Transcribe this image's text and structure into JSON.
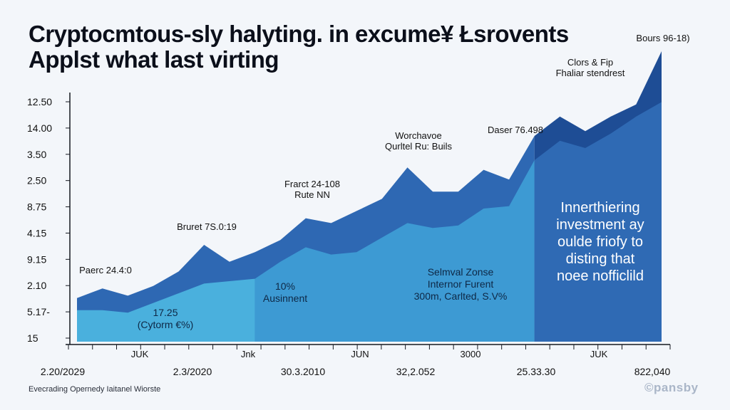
{
  "header": {
    "title_line1": "Cryptocmtous-sly halyting. in excume¥ Łsrovents",
    "title_line2": "Applst what last virting"
  },
  "chart_data": {
    "type": "area",
    "title": "Cryptocmtous-sly halyting. in excume¥ Łsrovents / Applst what last virting",
    "x_index": [
      0,
      1,
      2,
      3,
      4,
      5,
      6,
      7,
      8,
      9,
      10,
      11,
      12,
      13,
      14,
      15,
      16,
      17,
      18,
      19,
      20,
      21,
      22,
      23
    ],
    "ylim": [
      0,
      100
    ],
    "y_tick_labels": [
      "15",
      "5.17-",
      "2.10",
      "9.15",
      "4.15",
      "8.75",
      "2.50",
      "3.50",
      "14.00",
      "12.50"
    ],
    "x_tick_labels": [
      "JUK",
      "Jnk",
      "JUN",
      "3000",
      "JUK"
    ],
    "x_date_labels": [
      "2.20/2029",
      "2.3/2020",
      "30.3.2010",
      "32,2.052",
      "25.33.30",
      "822,040"
    ],
    "series": [
      {
        "name": "upper",
        "color": "#2e68b3",
        "values": [
          18,
          22,
          19,
          23,
          29,
          40,
          33,
          37,
          42,
          51,
          49,
          54,
          59,
          72,
          62,
          62,
          71,
          67,
          85,
          93,
          87,
          93,
          98,
          120
        ]
      },
      {
        "name": "lower",
        "color": "#3d9ad3",
        "values": [
          13,
          13,
          12,
          16,
          20,
          24,
          25,
          26,
          33,
          39,
          36,
          37,
          43,
          49,
          47,
          48,
          55,
          56,
          75,
          83,
          80,
          86,
          93,
          99
        ]
      }
    ],
    "shaded_from_index": 18,
    "annotations": [
      {
        "line1": "Paerc 24.4:0",
        "line2": ""
      },
      {
        "line1": "Bruret 7S.0:19",
        "line2": ""
      },
      {
        "line1": "Frarct 24-108",
        "line2": "Rute NN"
      },
      {
        "line1": "Worchavoe",
        "line2": "Qurltel Ru: Buils"
      },
      {
        "line1": "Daser 76.498",
        "line2": ""
      },
      {
        "line1": "Clors & Fip",
        "line2": "Fhaliar stendrest"
      },
      {
        "line1": "Bours 96-18)",
        "line2": ""
      }
    ],
    "inner_labels": [
      {
        "line1": "17.25",
        "line2": "(Cytorm €%)",
        "line3": ""
      },
      {
        "line1": "10%",
        "line2": "Ausinnent",
        "line3": ""
      },
      {
        "line1": "Selmval Zonse",
        "line2": "Internor Furent",
        "line3": "300m, Carlted, S.V%"
      }
    ],
    "callout": {
      "lines": [
        "Innerthiering",
        "investment ay",
        "oulde friofy to",
        "disting that",
        "noee nofficlild"
      ]
    }
  },
  "footer": {
    "source": "Evecrading Opernedy Iaitanel Wiorste",
    "brand": "©pansby"
  },
  "colors": {
    "axis": "#141820",
    "upper_fill": "#2e68b3",
    "lower_fill": "#3d9ad3",
    "lower_fill_light": "#4ab0dd",
    "shade_upper": "#1e4d95",
    "shade_lower": "#2f6ab4",
    "text": "#111111",
    "callout_text": "#ffffff"
  }
}
